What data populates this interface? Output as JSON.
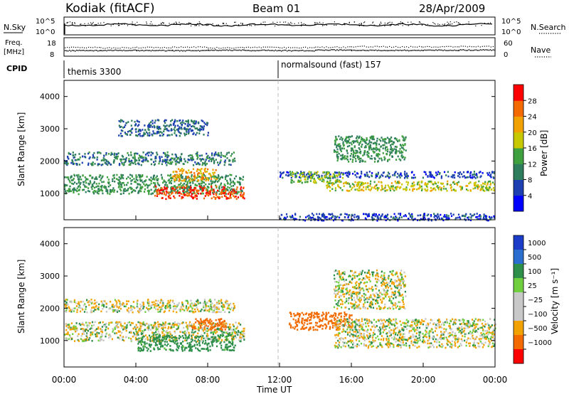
{
  "header": {
    "station": "Kodiak (fitACF)",
    "beam": "Beam 01",
    "date": "28/Apr/2009"
  },
  "colors": {
    "power_scale": [
      "#0000ff",
      "#1d3fb2",
      "#2e7d5c",
      "#3fa03f",
      "#c8c800",
      "#f2a200",
      "#f26a00",
      "#ff0000"
    ],
    "velocity_scale": [
      "#1b3cc8",
      "#2b6ed0",
      "#2e8f4a",
      "#6fcf3f",
      "#c8c8c8",
      "#c8c8c8",
      "#f2a200",
      "#f26a00",
      "#ff0000"
    ],
    "ground_scatter": "#c8c8c8"
  },
  "noise_panel": {
    "left_label": "N.Sky",
    "right_label": "N.Search",
    "left_ticks": [
      "10^5",
      "10^0"
    ],
    "right_ticks": [
      "10^5",
      "10^0"
    ]
  },
  "freq_panel": {
    "left_label": "Freq.",
    "left_unit": "[MHz]",
    "right_label": "Nave",
    "left_ticks": [
      "18",
      "8"
    ],
    "right_ticks": [
      "60",
      "0"
    ],
    "series": {
      "freq_mhz": [
        11.0,
        11.1,
        11.0,
        11.0,
        11.2,
        11.1,
        11.0,
        11.3,
        11.1,
        11.1,
        11.2,
        11.3
      ],
      "nave_approx": [
        28,
        27,
        28,
        29,
        27,
        28,
        28,
        29,
        31,
        30,
        30,
        31
      ]
    }
  },
  "cpid_panel": {
    "label": "CPID",
    "segments": [
      {
        "name": "themis 3300",
        "start": "00:00",
        "end": "12:00"
      },
      {
        "name": "normalsound (fast) 157",
        "start": "12:00",
        "end": "24:00"
      }
    ]
  },
  "chart_data": [
    {
      "type": "heatmap",
      "quantity": "Power",
      "ylabel": "Slant Range [km]",
      "ylim": [
        180,
        4500
      ],
      "yticks": [
        "1000",
        "2000",
        "3000",
        "4000"
      ],
      "colorbar_label": "Power [dB]",
      "colorbar_ticks": [
        "4",
        "8",
        "12",
        "16",
        "20",
        "24",
        "28"
      ],
      "colorbar_range": [
        0,
        32
      ],
      "regions": [
        {
          "t_start": 0.0,
          "t_end": 10.0,
          "r_min": 1000,
          "r_max": 1600,
          "power_db": 12
        },
        {
          "t_start": 0.0,
          "t_end": 9.5,
          "r_min": 1900,
          "r_max": 2300,
          "power_db": 10
        },
        {
          "t_start": 5.0,
          "t_end": 10.0,
          "r_min": 850,
          "r_max": 1250,
          "power_db": 28
        },
        {
          "t_start": 6.0,
          "t_end": 8.5,
          "r_min": 1400,
          "r_max": 1800,
          "power_db": 22
        },
        {
          "t_start": 3.0,
          "t_end": 8.0,
          "r_min": 2800,
          "r_max": 3300,
          "power_db": 8
        },
        {
          "t_start": 12.0,
          "t_end": 24.0,
          "r_min": 1500,
          "r_max": 1700,
          "power_db": 6
        },
        {
          "t_start": 12.5,
          "t_end": 15.5,
          "r_min": 1350,
          "r_max": 1700,
          "power_db": 16
        },
        {
          "t_start": 14.5,
          "t_end": 24.0,
          "r_min": 1100,
          "r_max": 1400,
          "power_db": 18
        },
        {
          "t_start": 15.0,
          "t_end": 19.0,
          "r_min": 2000,
          "r_max": 2800,
          "power_db": 12
        },
        {
          "t_start": 12.0,
          "t_end": 24.0,
          "r_min": 180,
          "r_max": 400,
          "power_db": 6
        }
      ]
    },
    {
      "type": "heatmap",
      "quantity": "Velocity",
      "ylabel": "Slant Range [km]",
      "xlabel": "Time UT",
      "ylim": [
        180,
        4500
      ],
      "yticks": [
        "1000",
        "2000",
        "3000",
        "4000"
      ],
      "xticks": [
        "00:00",
        "04:00",
        "08:00",
        "12:00",
        "16:00",
        "20:00",
        "00:00"
      ],
      "colorbar_label": "Velocity [m s⁻¹]",
      "colorbar_ticks": [
        "1000",
        "500",
        "100",
        "25",
        "−25",
        "−100",
        "−500",
        "−1000"
      ],
      "regions": [
        {
          "t_start": 0.0,
          "t_end": 10.0,
          "r_min": 1000,
          "r_max": 1600,
          "velocity": 0
        },
        {
          "t_start": 0.0,
          "t_end": 9.5,
          "r_min": 1900,
          "r_max": 2300,
          "velocity": 0
        },
        {
          "t_start": 4.0,
          "t_end": 9.5,
          "r_min": 700,
          "r_max": 1200,
          "velocity": 150
        },
        {
          "t_start": 7.0,
          "t_end": 9.0,
          "r_min": 1350,
          "r_max": 1700,
          "velocity": -300
        },
        {
          "t_start": 12.5,
          "t_end": 16.0,
          "r_min": 1350,
          "r_max": 1900,
          "velocity": -200
        },
        {
          "t_start": 15.0,
          "t_end": 24.0,
          "r_min": 800,
          "r_max": 1700,
          "velocity": 0
        },
        {
          "t_start": 15.0,
          "t_end": 19.0,
          "r_min": 2000,
          "r_max": 3200,
          "velocity": 0
        }
      ]
    }
  ]
}
